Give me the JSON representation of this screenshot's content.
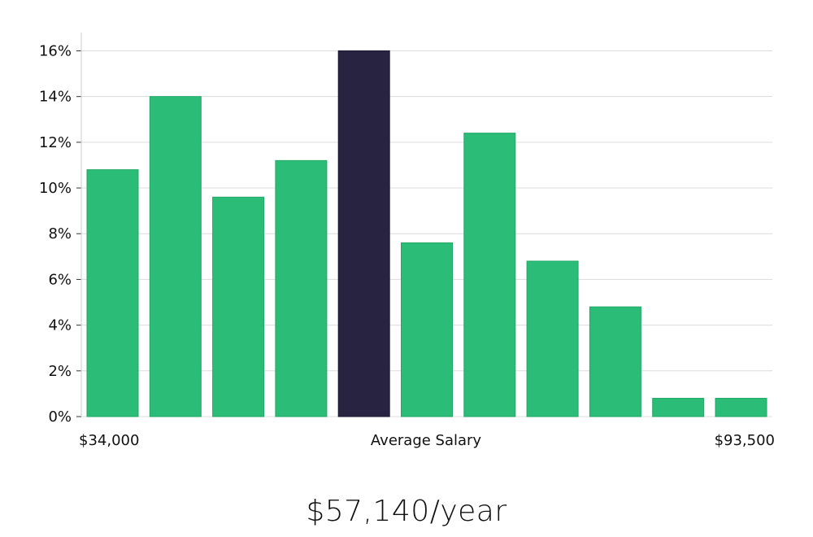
{
  "chart_data": {
    "type": "bar",
    "title": "",
    "xlabel": "Average Salary",
    "ylabel": "",
    "x_start_label": "$34,000",
    "x_end_label": "$93,500",
    "y_tick_labels": [
      "0%",
      "2%",
      "4%",
      "6%",
      "8%",
      "10%",
      "12%",
      "14%",
      "16%"
    ],
    "y_ticks": [
      0,
      2,
      4,
      6,
      8,
      10,
      12,
      14,
      16
    ],
    "ylim": [
      0,
      16.8
    ],
    "grid": true,
    "values": [
      10.8,
      14.0,
      9.6,
      11.2,
      16.0,
      7.6,
      12.4,
      6.8,
      4.8,
      0.8,
      0.8
    ],
    "highlight_index": 4,
    "colors": {
      "bar": "#2bbd77",
      "highlight": "#272341",
      "grid": "#dcdcdc"
    }
  },
  "summary": {
    "salary_text": "$57,140/year"
  }
}
